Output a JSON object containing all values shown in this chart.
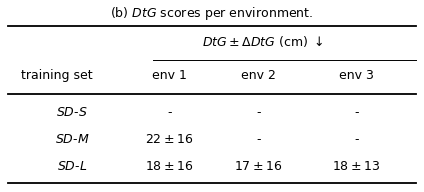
{
  "caption": "(b) $\\mathit{DtG}$ scores per environment.",
  "col_header_main": "$\\mathit{DtG} \\pm \\Delta\\mathit{DtG}$ (cm) $\\downarrow$",
  "col_subheaders": [
    "env 1",
    "env 2",
    "env 3"
  ],
  "row_header_label": "training set",
  "rows": [
    {
      "label": "$\\mathit{SD}$-$\\mathit{S}$",
      "values": [
        "-",
        "-",
        "-"
      ]
    },
    {
      "label": "$\\mathit{SD}$-$\\mathit{M}$",
      "values": [
        "$22 \\pm 16$",
        "-",
        "-"
      ]
    },
    {
      "label": "$\\mathit{SD}$-$\\mathit{L}$",
      "values": [
        "$18 \\pm 16$",
        "$17 \\pm 16$",
        "$18 \\pm 13$"
      ]
    }
  ],
  "font_size": 9,
  "caption_font_size": 9,
  "figsize": [
    4.24,
    1.92
  ],
  "dpi": 100
}
